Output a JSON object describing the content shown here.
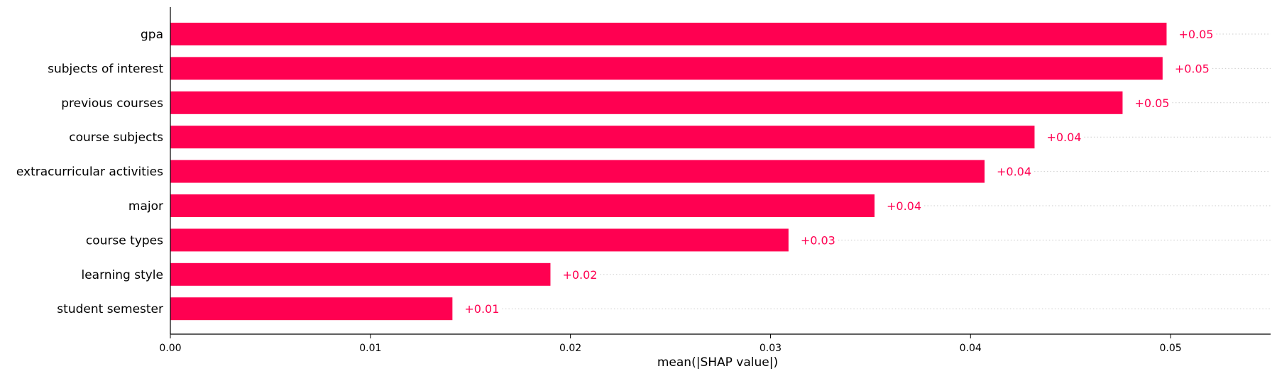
{
  "chart_data": {
    "type": "bar",
    "orientation": "horizontal",
    "categories": [
      "gpa",
      "subjects of interest",
      "previous courses",
      "course subjects",
      "extracurricular activities",
      "major",
      "course types",
      "learning style",
      "student semester"
    ],
    "values": [
      0.0498,
      0.0496,
      0.0476,
      0.0432,
      0.0407,
      0.0352,
      0.0309,
      0.019,
      0.0141
    ],
    "value_labels": [
      "+0.05",
      "+0.05",
      "+0.05",
      "+0.04",
      "+0.04",
      "+0.04",
      "+0.03",
      "+0.02",
      "+0.01"
    ],
    "xlabel": "mean(|SHAP value|)",
    "xlim": [
      0,
      0.055
    ],
    "xticks": [
      0.0,
      0.01,
      0.02,
      0.03,
      0.04,
      0.05
    ],
    "xtick_labels": [
      "0.00",
      "0.01",
      "0.02",
      "0.03",
      "0.04",
      "0.05"
    ],
    "bar_color": "#ff0051",
    "grid": "dotted horizontal guide lines after bars"
  }
}
